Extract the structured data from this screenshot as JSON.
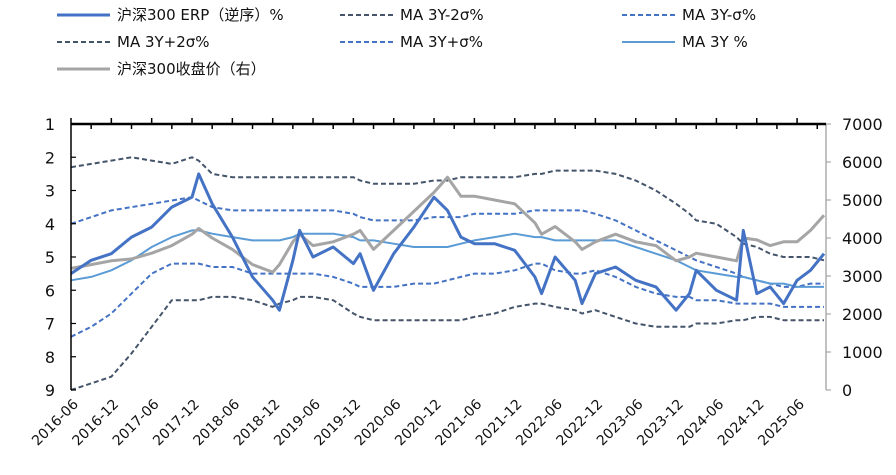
{
  "chart_data": {
    "type": "line",
    "title": "",
    "xlabel": "",
    "ylabel": "",
    "y2label": "",
    "grid": false,
    "legend_position": "top",
    "ylim": [
      9,
      1
    ],
    "y_inverted": true,
    "y2lim": [
      0,
      7000
    ],
    "yticks": [
      "1",
      "2",
      "3",
      "4",
      "5",
      "6",
      "7",
      "8",
      "9"
    ],
    "y2ticks": [
      "7000",
      "6000",
      "5000",
      "4000",
      "3000",
      "2000",
      "1000",
      "0"
    ],
    "xticks": [
      "2016-06",
      "2016-12",
      "2017-06",
      "2017-12",
      "2018-06",
      "2018-12",
      "2019-06",
      "2019-12",
      "2020-06",
      "2020-12",
      "2021-06",
      "2021-12",
      "2022-06",
      "2022-12",
      "2023-06",
      "2023-12",
      "2024-06",
      "2024-12",
      "2025-06"
    ],
    "x": [
      "2016-06",
      "2016-09",
      "2016-12",
      "2017-03",
      "2017-06",
      "2017-09",
      "2017-12",
      "2018-01",
      "2018-03",
      "2018-06",
      "2018-09",
      "2018-12",
      "2019-01",
      "2019-03",
      "2019-04",
      "2019-06",
      "2019-09",
      "2019-12",
      "2020-01",
      "2020-03",
      "2020-06",
      "2020-09",
      "2020-12",
      "2021-02",
      "2021-04",
      "2021-06",
      "2021-09",
      "2021-12",
      "2022-03",
      "2022-04",
      "2022-06",
      "2022-09",
      "2022-10",
      "2022-12",
      "2023-03",
      "2023-06",
      "2023-09",
      "2023-12",
      "2024-02",
      "2024-03",
      "2024-06",
      "2024-09",
      "2024-10",
      "2024-12",
      "2025-02",
      "2025-04",
      "2025-06",
      "2025-08",
      "2025-10"
    ],
    "series": [
      {
        "name": "沪深300 ERP（逆序）%",
        "axis": "left",
        "color": "#4472C4",
        "style": "solid",
        "width": 3,
        "values": [
          5.5,
          5.1,
          4.9,
          4.4,
          4.1,
          3.5,
          3.2,
          2.5,
          3.4,
          4.4,
          5.6,
          6.3,
          6.6,
          5.1,
          4.2,
          5.0,
          4.7,
          5.2,
          4.9,
          6.0,
          4.9,
          4.1,
          3.2,
          3.6,
          4.4,
          4.6,
          4.6,
          4.8,
          5.6,
          6.1,
          5.0,
          5.7,
          6.4,
          5.5,
          5.3,
          5.7,
          5.9,
          6.6,
          6.1,
          5.4,
          6.0,
          6.3,
          4.2,
          6.1,
          5.9,
          6.4,
          5.7,
          5.4,
          4.9
        ]
      },
      {
        "name": "MA 3Y-2σ%",
        "axis": "left",
        "color": "#44546A",
        "style": "dash",
        "width": 2,
        "values": [
          2.3,
          2.2,
          2.1,
          2.0,
          2.1,
          2.2,
          2.0,
          2.1,
          2.5,
          2.6,
          2.6,
          2.6,
          2.6,
          2.6,
          2.6,
          2.6,
          2.6,
          2.6,
          2.7,
          2.8,
          2.8,
          2.8,
          2.7,
          2.7,
          2.6,
          2.6,
          2.6,
          2.6,
          2.5,
          2.5,
          2.4,
          2.4,
          2.4,
          2.4,
          2.5,
          2.7,
          3.0,
          3.4,
          3.7,
          3.9,
          4.0,
          4.4,
          4.6,
          4.7,
          4.9,
          5.0,
          5.0,
          5.0,
          5.1
        ]
      },
      {
        "name": "MA 3Y-σ%",
        "axis": "left",
        "color": "#4472C4",
        "style": "dash",
        "width": 2,
        "values": [
          4.0,
          3.8,
          3.6,
          3.5,
          3.4,
          3.3,
          3.2,
          3.3,
          3.5,
          3.6,
          3.6,
          3.6,
          3.6,
          3.6,
          3.6,
          3.6,
          3.6,
          3.7,
          3.8,
          3.9,
          3.9,
          3.9,
          3.8,
          3.8,
          3.8,
          3.7,
          3.7,
          3.7,
          3.6,
          3.6,
          3.6,
          3.6,
          3.6,
          3.7,
          3.9,
          4.2,
          4.5,
          4.8,
          5.0,
          5.1,
          5.3,
          5.5,
          5.6,
          5.7,
          5.8,
          5.9,
          5.9,
          5.8,
          5.8
        ]
      },
      {
        "name": "MA 3Y+2σ%",
        "axis": "left",
        "color": "#44546A",
        "style": "dash",
        "width": 2,
        "values": [
          9.0,
          8.8,
          8.6,
          7.9,
          7.1,
          6.3,
          6.3,
          6.3,
          6.2,
          6.2,
          6.3,
          6.5,
          6.4,
          6.3,
          6.2,
          6.2,
          6.3,
          6.7,
          6.8,
          6.9,
          6.9,
          6.9,
          6.9,
          6.9,
          6.9,
          6.8,
          6.7,
          6.5,
          6.4,
          6.4,
          6.5,
          6.6,
          6.7,
          6.6,
          6.8,
          7.0,
          7.1,
          7.1,
          7.1,
          7.0,
          7.0,
          6.9,
          6.9,
          6.8,
          6.8,
          6.9,
          6.9,
          6.9,
          6.9
        ]
      },
      {
        "name": "MA 3Y+σ%",
        "axis": "left",
        "color": "#4472C4",
        "style": "dash",
        "width": 2,
        "values": [
          7.4,
          7.1,
          6.7,
          6.1,
          5.5,
          5.2,
          5.2,
          5.2,
          5.3,
          5.3,
          5.5,
          5.5,
          5.5,
          5.5,
          5.5,
          5.5,
          5.6,
          5.8,
          5.9,
          5.9,
          5.9,
          5.8,
          5.8,
          5.7,
          5.6,
          5.5,
          5.5,
          5.4,
          5.2,
          5.2,
          5.4,
          5.5,
          5.5,
          5.4,
          5.6,
          5.9,
          6.1,
          6.2,
          6.2,
          6.3,
          6.3,
          6.4,
          6.4,
          6.4,
          6.4,
          6.5,
          6.5,
          6.5,
          6.5
        ]
      },
      {
        "name": "MA 3Y %",
        "axis": "left",
        "color": "#5B9BD5",
        "style": "solid",
        "width": 2,
        "values": [
          5.7,
          5.6,
          5.4,
          5.1,
          4.7,
          4.4,
          4.2,
          4.2,
          4.3,
          4.4,
          4.5,
          4.5,
          4.5,
          4.4,
          4.3,
          4.3,
          4.3,
          4.4,
          4.5,
          4.5,
          4.6,
          4.7,
          4.7,
          4.7,
          4.6,
          4.5,
          4.4,
          4.3,
          4.4,
          4.4,
          4.5,
          4.5,
          4.5,
          4.5,
          4.5,
          4.7,
          4.9,
          5.1,
          5.3,
          5.4,
          5.5,
          5.6,
          5.6,
          5.7,
          5.8,
          5.8,
          5.9,
          5.9,
          5.9
        ]
      },
      {
        "name": "沪深300收盘价（右）",
        "axis": "right",
        "color": "#A5A5A5",
        "style": "solid",
        "width": 3,
        "values": [
          3200,
          3300,
          3400,
          3450,
          3600,
          3800,
          4100,
          4250,
          4000,
          3700,
          3300,
          3100,
          3300,
          3900,
          4100,
          3800,
          3900,
          4100,
          4200,
          3700,
          4200,
          4700,
          5200,
          5600,
          5100,
          5100,
          5000,
          4900,
          4400,
          4100,
          4300,
          3900,
          3700,
          3900,
          4100,
          3900,
          3800,
          3400,
          3500,
          3600,
          3500,
          3400,
          4000,
          3950,
          3800,
          3900,
          3900,
          4200,
          4600
        ]
      }
    ]
  },
  "legend": [
    {
      "label": "沪深300 ERP（逆序）%",
      "icon": "solid-line-icon"
    },
    {
      "label": "MA 3Y-2σ%",
      "icon": "dashed-line-icon"
    },
    {
      "label": "MA 3Y-σ%",
      "icon": "dashed-line-icon"
    },
    {
      "label": "MA 3Y+2σ%",
      "icon": "dashed-line-icon"
    },
    {
      "label": "MA 3Y+σ%",
      "icon": "dashed-line-icon"
    },
    {
      "label": "MA 3Y %",
      "icon": "solid-line-icon"
    },
    {
      "label": "沪深300收盘价（右）",
      "icon": "solid-line-icon"
    }
  ]
}
